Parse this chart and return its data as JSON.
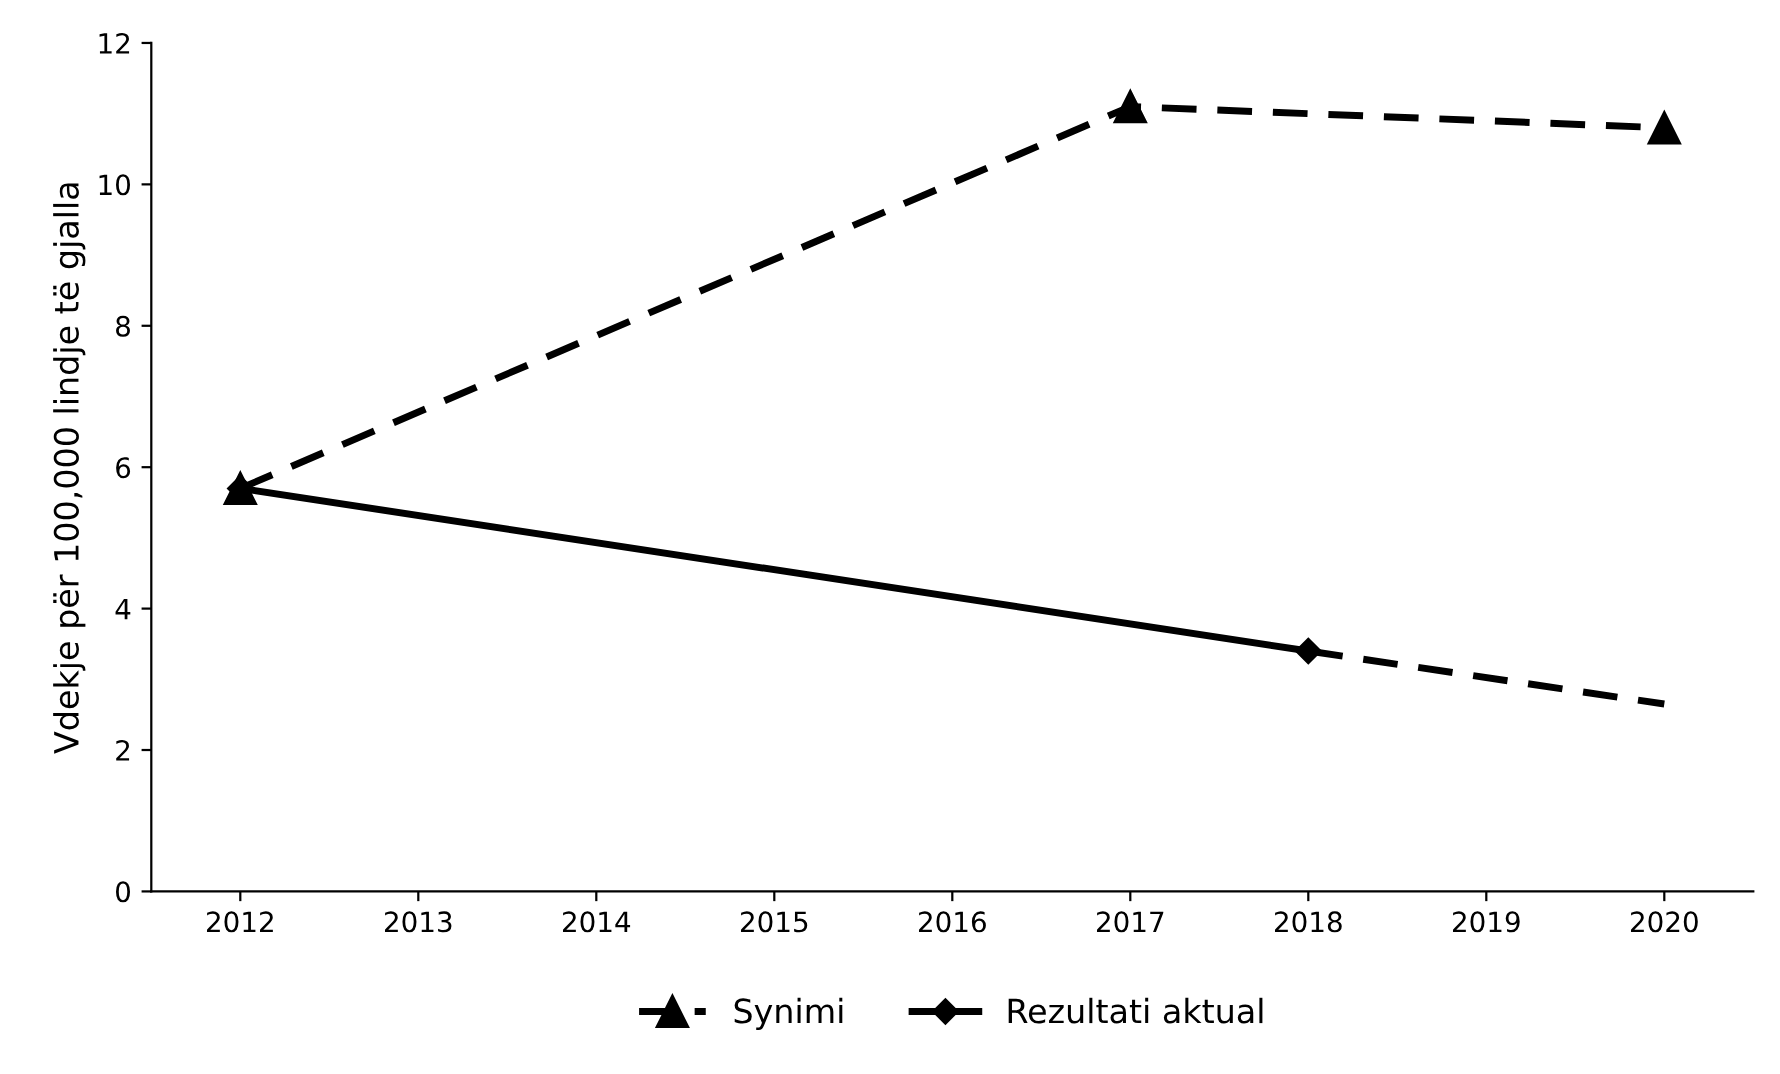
{
  "chart_data": {
    "type": "line",
    "ylabel": "Vdekje për 100,000 lindje të gjalla",
    "xlim": [
      2011.5,
      2020.5
    ],
    "xticks": [
      2012,
      2013,
      2014,
      2015,
      2016,
      2017,
      2018,
      2019,
      2020
    ],
    "ylim": [
      0,
      12
    ],
    "yticks": [
      0,
      2,
      4,
      6,
      8,
      10,
      12
    ],
    "grid": false,
    "legend": "bottom",
    "series": [
      {
        "name": "Synimi",
        "color": "#000000",
        "line_style": "dashed",
        "marker": "triangle",
        "x": [
          2012,
          2017,
          2020
        ],
        "values": [
          5.7,
          11.1,
          10.8
        ]
      },
      {
        "name": "Rezultati aktual",
        "color": "#000000",
        "line_style": "solid",
        "marker": "diamond",
        "x": [
          2012,
          2018
        ],
        "values": [
          5.7,
          3.4
        ]
      },
      {
        "color": "#000000",
        "line_style": "dashed",
        "marker": "none",
        "x": [
          2018,
          2020
        ],
        "values": [
          3.4,
          2.65
        ]
      }
    ]
  }
}
